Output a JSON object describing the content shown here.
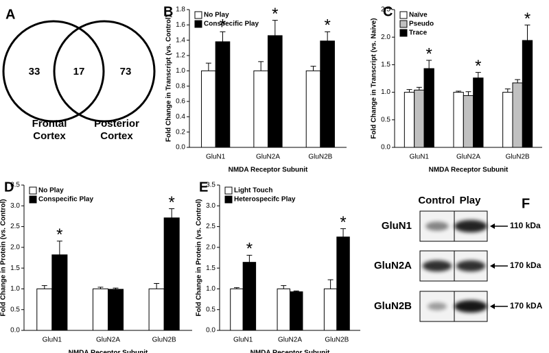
{
  "panel_letters": [
    "A",
    "B",
    "C",
    "D",
    "E",
    "F"
  ],
  "venn": {
    "left_value": 33,
    "overlap_value": 17,
    "right_value": 73,
    "left_label": [
      "Frontal",
      "Cortex"
    ],
    "right_label": [
      "Posterior",
      "Cortex"
    ]
  },
  "blot": {
    "columns": [
      "Control",
      "Play"
    ],
    "rows": [
      {
        "name": "GluN1",
        "size": "110 kDa"
      },
      {
        "name": "GluN2A",
        "size": "170 kDa"
      },
      {
        "name": "GluN2B",
        "size": "170 kDA"
      }
    ]
  },
  "chart_data": [
    {
      "type": "bar",
      "categories": [
        "GluN1",
        "GluN2A",
        "GluN2B"
      ],
      "x_label": "NMDA Receptor Subunit",
      "y_label": "Fold Change in Transcript (vs. Control)",
      "legend": "upper left",
      "ylim": [
        0,
        1.8
      ],
      "yticks": [
        {
          "value": 0,
          "label": "0.0"
        },
        {
          "value": 0.2,
          "label": "0.2"
        },
        {
          "value": 0.4,
          "label": "0.4"
        },
        {
          "value": 0.6,
          "label": "0.6"
        },
        {
          "value": 0.8,
          "label": "0.8"
        },
        {
          "value": 1,
          "label": "1.0"
        },
        {
          "value": 1.2,
          "label": "1.2"
        },
        {
          "value": 1.4,
          "label": "1.4"
        },
        {
          "value": 1.6,
          "label": "1.6"
        },
        {
          "value": 1.8,
          "label": "1.8"
        }
      ],
      "series": [
        {
          "name": "No Play",
          "color": "#ffffff",
          "values": [
            1.0,
            1.0,
            1.0
          ],
          "errors": [
            0.1,
            0.12,
            0.06
          ]
        },
        {
          "name": "Conspecific Play",
          "color": "#000000",
          "values": [
            1.38,
            1.46,
            1.39
          ],
          "errors": [
            0.13,
            0.2,
            0.12
          ],
          "annotations": [
            "*",
            "*",
            "*"
          ]
        }
      ]
    },
    {
      "type": "bar",
      "categories": [
        "GluN1",
        "GluN2A",
        "GluN2B"
      ],
      "x_label": "NMDA Receptor Subunit",
      "y_label": "Fold Change in Transcript (vs. Naive)",
      "legend": "upper left",
      "ylim": [
        0,
        2.5
      ],
      "yticks": [
        {
          "value": 0,
          "label": "0.0"
        },
        {
          "value": 0.5,
          "label": "0.5"
        },
        {
          "value": 1,
          "label": "1.0"
        },
        {
          "value": 1.5,
          "label": "1.5"
        },
        {
          "value": 2,
          "label": "2.0"
        },
        {
          "value": 2.5,
          "label": "2.5"
        }
      ],
      "series": [
        {
          "name": "Naïve",
          "color": "#ffffff",
          "values": [
            1.0,
            1.0,
            1.0
          ],
          "errors": [
            0.05,
            0.02,
            0.06
          ]
        },
        {
          "name": "Pseudo",
          "color": "#c0c0c0",
          "values": [
            1.04,
            0.94,
            1.17
          ],
          "errors": [
            0.05,
            0.07,
            0.06
          ]
        },
        {
          "name": "Trace",
          "color": "#000000",
          "values": [
            1.43,
            1.26,
            1.94
          ],
          "errors": [
            0.15,
            0.1,
            0.28
          ],
          "annotations": [
            "*",
            "*",
            "*"
          ]
        }
      ]
    },
    {
      "type": "bar",
      "categories": [
        "GluN1",
        "GluN2A",
        "GluN2B"
      ],
      "x_label": "NMDA Receptor Subunit",
      "y_label": "Fold Change in Protein (vs. Control)",
      "legend": "upper left",
      "ylim": [
        0,
        3.5
      ],
      "yticks": [
        {
          "value": 0,
          "label": "0.0"
        },
        {
          "value": 0.5,
          "label": "0.5"
        },
        {
          "value": 1,
          "label": "1.0"
        },
        {
          "value": 1.5,
          "label": "1.5"
        },
        {
          "value": 2,
          "label": "2.0"
        },
        {
          "value": 2.5,
          "label": "2.5"
        },
        {
          "value": 3,
          "label": "3.0"
        },
        {
          "value": 3.5,
          "label": "3.5"
        }
      ],
      "series": [
        {
          "name": "No Play",
          "color": "#ffffff",
          "values": [
            1.0,
            1.0,
            1.0
          ],
          "errors": [
            0.08,
            0.04,
            0.13
          ]
        },
        {
          "name": "Conspecific Play",
          "color": "#000000",
          "values": [
            1.82,
            0.99,
            2.71
          ],
          "errors": [
            0.33,
            0.03,
            0.22
          ],
          "annotations": [
            "*",
            null,
            "*"
          ]
        }
      ]
    },
    {
      "type": "bar",
      "categories": [
        "GluN1",
        "GluN2A",
        "GluN2B"
      ],
      "x_label": "NMDA Receptor Subunit",
      "y_label": "Fold Change in Protein (vs. Control)",
      "legend": "upper left",
      "ylim": [
        0,
        3.5
      ],
      "yticks": [
        {
          "value": 0,
          "label": "0.0"
        },
        {
          "value": 0.5,
          "label": "0.5"
        },
        {
          "value": 1,
          "label": "1.0"
        },
        {
          "value": 1.5,
          "label": "1.5"
        },
        {
          "value": 2,
          "label": "2.0"
        },
        {
          "value": 2.5,
          "label": "2.5"
        },
        {
          "value": 3,
          "label": "3.0"
        },
        {
          "value": 3.5,
          "label": "3.5"
        }
      ],
      "series": [
        {
          "name": "Light Touch",
          "color": "#ffffff",
          "values": [
            1.0,
            1.0,
            1.0
          ],
          "errors": [
            0.03,
            0.08,
            0.22
          ]
        },
        {
          "name": "Heterospecifc Play",
          "color": "#000000",
          "values": [
            1.64,
            0.93,
            2.25
          ],
          "errors": [
            0.17,
            0.02,
            0.2
          ],
          "annotations": [
            "*",
            null,
            "*"
          ]
        }
      ]
    }
  ]
}
